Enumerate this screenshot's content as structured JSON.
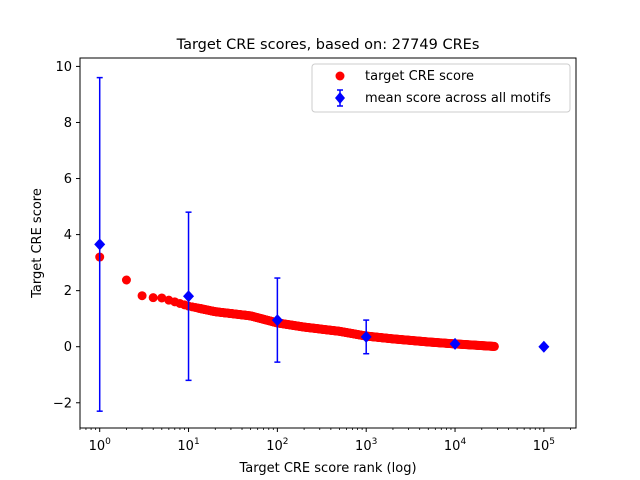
{
  "chart_data": {
    "type": "scatter",
    "title": "Target CRE scores, based on: 27749 CREs",
    "xlabel": "Target CRE score rank (log)",
    "ylabel": "Target CRE score",
    "x_scale": "log",
    "xlim": [
      0.6,
      230000
    ],
    "ylim": [
      -2.9,
      10.3
    ],
    "x_ticks": [
      1,
      10,
      100,
      1000,
      10000,
      100000
    ],
    "x_tick_labels": [
      {
        "base": "10",
        "exp": "0"
      },
      {
        "base": "10",
        "exp": "1"
      },
      {
        "base": "10",
        "exp": "2"
      },
      {
        "base": "10",
        "exp": "3"
      },
      {
        "base": "10",
        "exp": "4"
      },
      {
        "base": "10",
        "exp": "5"
      }
    ],
    "y_ticks": [
      -2,
      0,
      2,
      4,
      6,
      8,
      10
    ],
    "y_tick_labels": [
      "−2",
      "0",
      "2",
      "4",
      "6",
      "8",
      "10"
    ],
    "grid": false,
    "legend_position": "top-right",
    "series": [
      {
        "name": "target CRE score",
        "kind": "scatter",
        "color": "#ff0000",
        "marker": "circle",
        "x_sampling": "ranks 1 to 27749",
        "points": [
          [
            1,
            3.2
          ],
          [
            2,
            2.38
          ],
          [
            3,
            1.82
          ],
          [
            4,
            1.75
          ],
          [
            5,
            1.74
          ],
          [
            6,
            1.66
          ],
          [
            7,
            1.6
          ],
          [
            10,
            1.45
          ],
          [
            20,
            1.25
          ],
          [
            50,
            1.1
          ],
          [
            100,
            0.85
          ],
          [
            200,
            0.7
          ],
          [
            500,
            0.55
          ],
          [
            1000,
            0.38
          ],
          [
            2000,
            0.28
          ],
          [
            5000,
            0.17
          ],
          [
            10000,
            0.1
          ],
          [
            20000,
            0.04
          ],
          [
            27749,
            0.01
          ]
        ]
      },
      {
        "name": "mean score across all motifs",
        "kind": "errorbar",
        "color": "#0000ff",
        "marker": "diamond",
        "points": [
          {
            "x": 1,
            "y": 3.65,
            "err": 5.95
          },
          {
            "x": 10,
            "y": 1.8,
            "err": 3.0
          },
          {
            "x": 100,
            "y": 0.95,
            "err": 1.5
          },
          {
            "x": 1000,
            "y": 0.35,
            "err": 0.6
          },
          {
            "x": 10000,
            "y": 0.1,
            "err": 0.0
          },
          {
            "x": 100000,
            "y": 0.0,
            "err": 0.0
          }
        ]
      }
    ]
  }
}
